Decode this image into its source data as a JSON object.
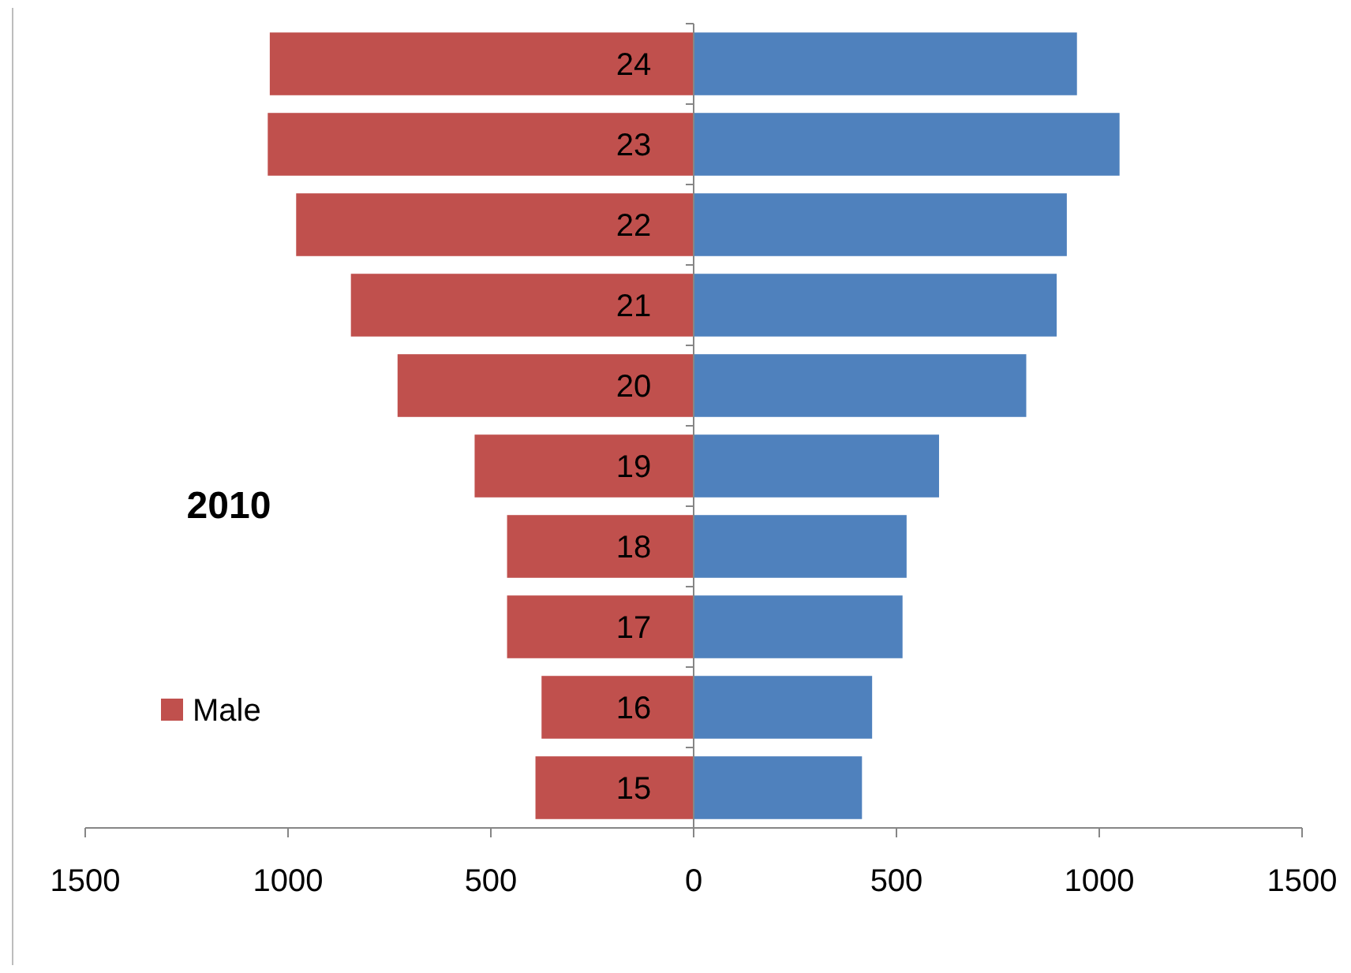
{
  "chart_data": {
    "type": "bar",
    "orientation": "horizontal",
    "stacked": true,
    "title": "2010",
    "categories": [
      "24",
      "23",
      "22",
      "21",
      "20",
      "19",
      "18",
      "17",
      "16",
      "15"
    ],
    "series": [
      {
        "name": "Male",
        "color": "#c0504d",
        "values": [
          -1045,
          -1050,
          -980,
          -845,
          -730,
          -540,
          -460,
          -460,
          -375,
          -390
        ]
      },
      {
        "color": "#4f81bd",
        "values": [
          945,
          1050,
          920,
          895,
          820,
          605,
          525,
          515,
          440,
          415
        ]
      }
    ],
    "xlim": [
      -1500,
      1500
    ],
    "xticks": [
      {
        "value": -1500,
        "label": "1500"
      },
      {
        "value": -1000,
        "label": "1000"
      },
      {
        "value": -500,
        "label": "500"
      },
      0,
      500,
      1000,
      1500
    ],
    "grid": false,
    "legend": "left"
  }
}
